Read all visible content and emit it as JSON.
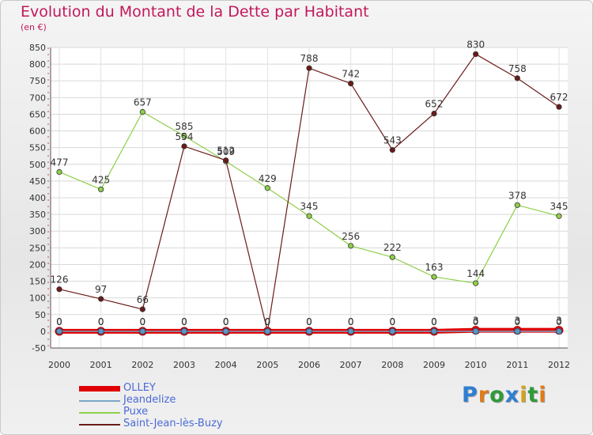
{
  "chart_data": {
    "type": "line",
    "title": "Evolution du Montant de la Dette par Habitant",
    "subtitle": "(en €)",
    "x": [
      "2000",
      "2001",
      "2002",
      "2003",
      "2004",
      "2005",
      "2006",
      "2007",
      "2008",
      "2009",
      "2010",
      "2011",
      "2012"
    ],
    "ylim": [
      -50,
      850
    ],
    "yticks": [
      -50,
      0,
      50,
      100,
      150,
      200,
      250,
      300,
      350,
      400,
      450,
      500,
      550,
      600,
      650,
      700,
      750,
      800,
      850
    ],
    "grid": true,
    "legend_position": "bottom-left",
    "series": [
      {
        "name": "OLLEY",
        "color": "#e00000",
        "values": [
          0,
          0,
          0,
          0,
          0,
          0,
          0,
          0,
          0,
          0,
          3,
          3,
          3
        ]
      },
      {
        "name": "Jeandelize",
        "color": "#7aa7c7",
        "values": [
          0,
          0,
          0,
          0,
          0,
          0,
          0,
          0,
          0,
          0,
          0,
          0,
          0
        ]
      },
      {
        "name": "Puxe",
        "color": "#8ed04a",
        "values": [
          477,
          425,
          657,
          585,
          509,
          429,
          345,
          256,
          222,
          163,
          144,
          378,
          345
        ]
      },
      {
        "name": "Saint-Jean-lès-Buzy",
        "color": "#6b1a1a",
        "values": [
          126,
          97,
          66,
          554,
          512,
          0,
          788,
          742,
          543,
          652,
          830,
          758,
          672
        ]
      }
    ]
  },
  "logo": {
    "letters": [
      {
        "char": "P",
        "color": "#2f7fd1"
      },
      {
        "char": "r",
        "color": "#e07a1a"
      },
      {
        "char": "o",
        "color": "#2f9a3a"
      },
      {
        "char": "x",
        "color": "#2f7fd1"
      },
      {
        "char": "i",
        "color": "#d4a21a"
      },
      {
        "char": "t",
        "color": "#2f9a3a"
      },
      {
        "char": "i",
        "color": "#e07a1a"
      }
    ]
  }
}
